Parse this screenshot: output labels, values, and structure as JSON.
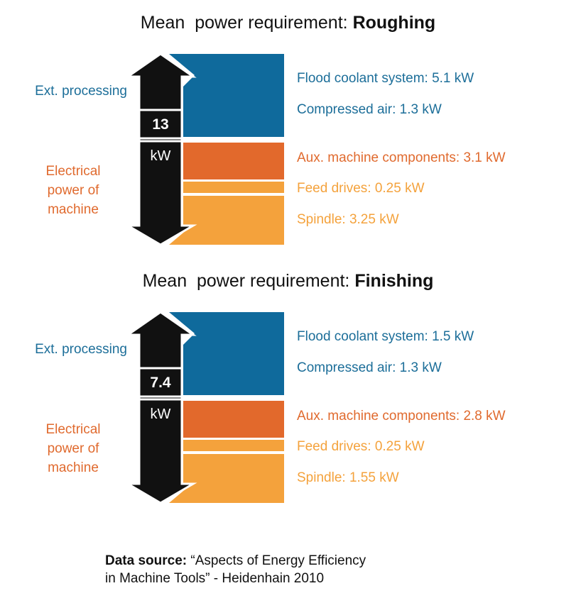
{
  "chart_data": [
    {
      "type": "stacked-bar",
      "title_prefix": "Mean  power requirement: ",
      "title_bold": "Roughing",
      "total_value": "13",
      "total_unit": "kW",
      "group_labels": {
        "ext": "Ext. processing",
        "elec": [
          "Electrical",
          "power of",
          "machine"
        ]
      },
      "segments": [
        {
          "label": "Flood coolant system: 5.1 kW",
          "value": 5.1,
          "group": "ext",
          "color": "#0f6a9c"
        },
        {
          "label": "Compressed air: 1.3 kW",
          "value": 1.3,
          "group": "ext",
          "color": "#0f6a9c"
        },
        {
          "label": "Aux. machine components: 3.1 kW",
          "value": 3.1,
          "group": "elec",
          "color": "#e2692c"
        },
        {
          "label": "Feed drives: 0.25 kW",
          "value": 0.25,
          "group": "elec",
          "color": "#f4a23c"
        },
        {
          "label": "Spindle: 3.25 kW",
          "value": 3.25,
          "group": "elec",
          "color": "#f4a23c"
        }
      ]
    },
    {
      "type": "stacked-bar",
      "title_prefix": "Mean  power requirement: ",
      "title_bold": "Finishing",
      "total_value": "7.4",
      "total_unit": "kW",
      "group_labels": {
        "ext": "Ext. processing",
        "elec": [
          "Electrical",
          "power of",
          "machine"
        ]
      },
      "segments": [
        {
          "label": "Flood coolant system: 1.5 kW",
          "value": 1.5,
          "group": "ext",
          "color": "#0f6a9c"
        },
        {
          "label": "Compressed air: 1.3 kW",
          "value": 1.3,
          "group": "ext",
          "color": "#0f6a9c"
        },
        {
          "label": "Aux. machine components: 2.8 kW",
          "value": 2.8,
          "group": "elec",
          "color": "#e2692c"
        },
        {
          "label": "Feed drives: 0.25 kW",
          "value": 0.25,
          "group": "elec",
          "color": "#f4a23c"
        },
        {
          "label": "Spindle: 1.55 kW",
          "value": 1.55,
          "group": "elec",
          "color": "#f4a23c"
        }
      ]
    }
  ],
  "source": {
    "bold": "Data source:",
    "line1": " “Aspects of Energy Efficiency",
    "line2": "in Machine Tools” - Heidenhain 2010"
  }
}
